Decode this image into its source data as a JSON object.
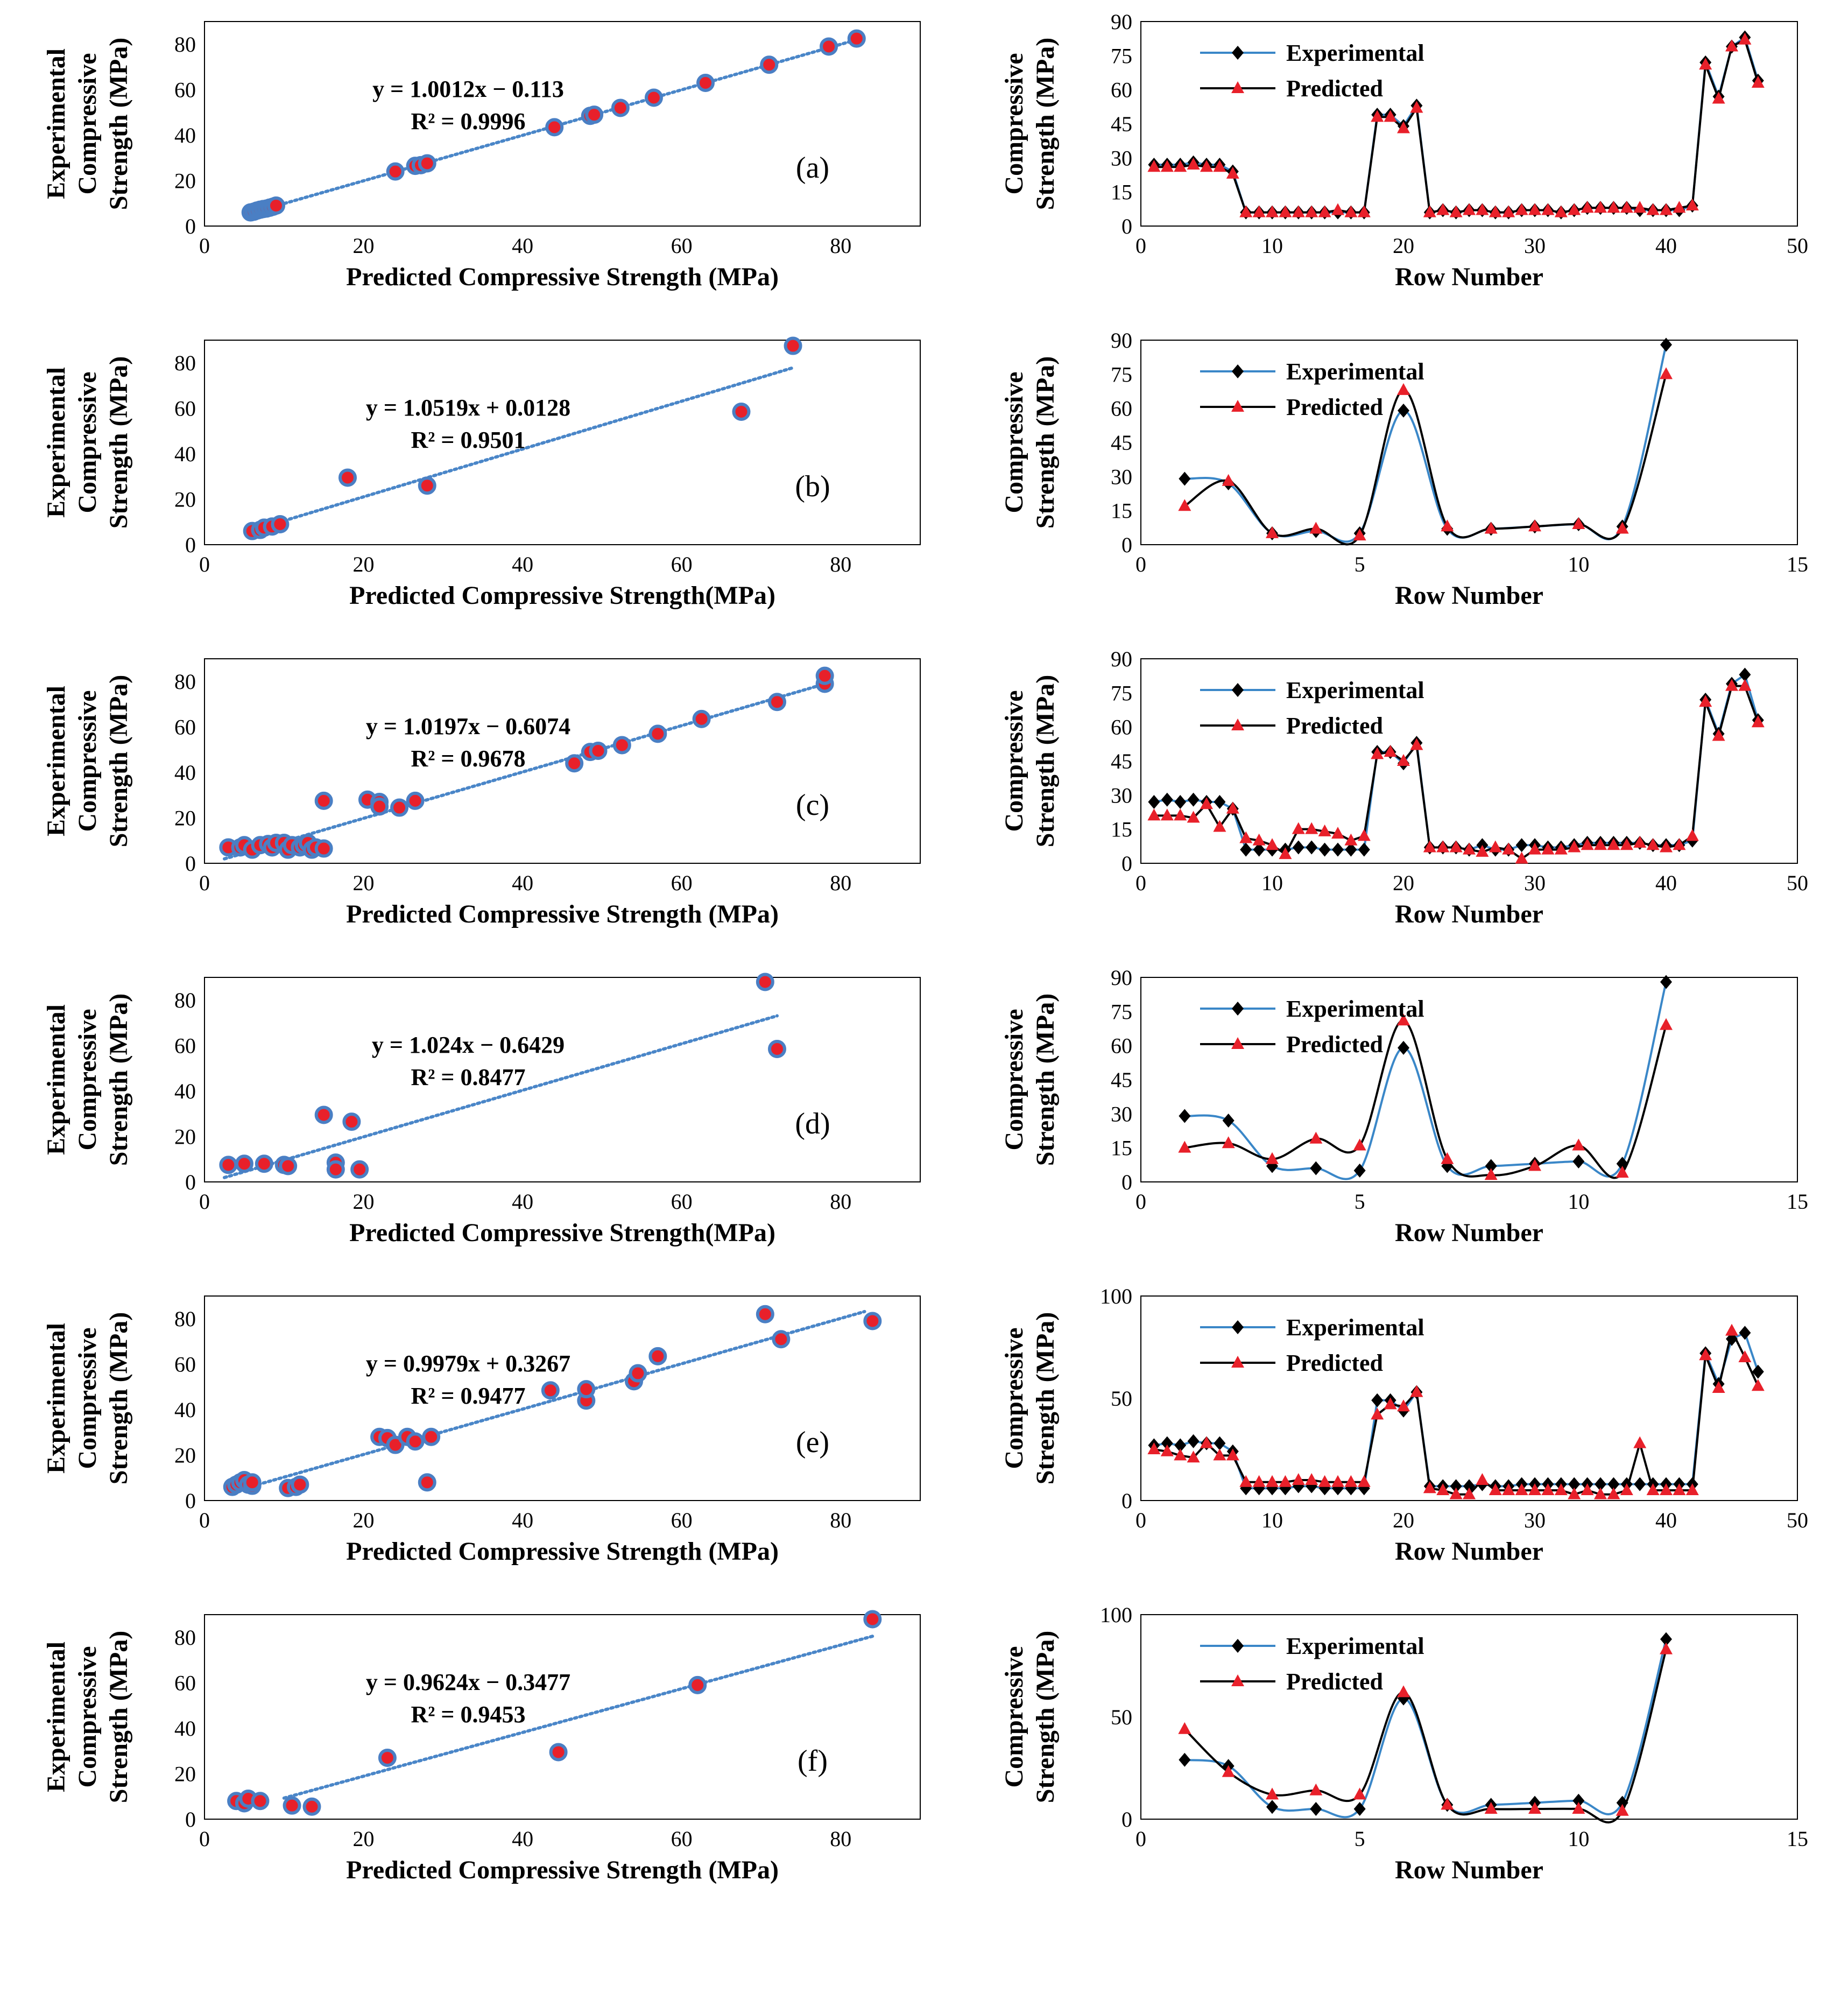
{
  "figure": {
    "colors": {
      "marker_fill": "#e8202a",
      "marker_edge": "#4a7fc4",
      "trendline": "#4a86c8",
      "experimental_line": "#3a87c8",
      "experimental_marker": "#000000",
      "predicted_line": "#000000",
      "predicted_marker": "#e8202a",
      "frame": "#000000"
    }
  },
  "chart_data": [
    {
      "id": "a",
      "type": "scatter",
      "panel_label": "(a)",
      "xlabel": "Predicted Compressive Strength (MPa)",
      "ylabel": [
        "Experimental",
        "Compressive",
        "Strength (MPa)"
      ],
      "xlim": [
        0,
        90
      ],
      "ylim": [
        0,
        90
      ],
      "xticks": [
        0,
        20,
        40,
        60,
        80
      ],
      "yticks": [
        0,
        20,
        40,
        60,
        80
      ],
      "trendline": {
        "equation": "y = 1.0012x − 0.113",
        "r2": "R² = 0.9996",
        "slope": 1.0012,
        "intercept": -0.113,
        "x_range": [
          5.5,
          82
        ]
      },
      "points": [
        [
          5.8,
          6
        ],
        [
          6.2,
          6.3
        ],
        [
          6.6,
          6.8
        ],
        [
          7,
          7.2
        ],
        [
          7.4,
          7.5
        ],
        [
          7.8,
          7.7
        ],
        [
          8.2,
          8.1
        ],
        [
          8.6,
          8.5
        ],
        [
          9,
          9
        ],
        [
          24,
          24
        ],
        [
          26.5,
          26.5
        ],
        [
          27.2,
          26.8
        ],
        [
          28,
          27.6
        ],
        [
          44,
          43.5
        ],
        [
          48.5,
          48.5
        ],
        [
          49,
          49
        ],
        [
          52.3,
          52
        ],
        [
          56.5,
          56.5
        ],
        [
          63,
          63
        ],
        [
          71,
          71
        ],
        [
          78.5,
          79
        ],
        [
          82,
          82.5
        ]
      ]
    },
    {
      "id": "a-row",
      "type": "line",
      "xlabel": "Row Number",
      "ylabel": [
        "Compressive",
        "Strength (MPa)"
      ],
      "xlim": [
        0,
        50
      ],
      "ylim": [
        0,
        90
      ],
      "xticks": [
        0,
        10,
        20,
        30,
        40,
        50
      ],
      "yticks": [
        0,
        15,
        30,
        45,
        60,
        75,
        90
      ],
      "legend": [
        "Experimental",
        "Predicted"
      ],
      "series": [
        {
          "name": "Experimental",
          "values": [
            27,
            27,
            27,
            28,
            27,
            27,
            24,
            6,
            6,
            6,
            6,
            6,
            6,
            6,
            6,
            6,
            6,
            49,
            49,
            44,
            53,
            6,
            7,
            6,
            7,
            7,
            6,
            6,
            7,
            7,
            7,
            6,
            7,
            8,
            8,
            8,
            8,
            7,
            7,
            7,
            7,
            9,
            72,
            57,
            79,
            83,
            64
          ]
        },
        {
          "name": "Predicted",
          "values": [
            26,
            26,
            26,
            27,
            26,
            26,
            23,
            6,
            6,
            6,
            6,
            6,
            6,
            6,
            7,
            6,
            6,
            48,
            48,
            43,
            52,
            6,
            7,
            6,
            7,
            7,
            6,
            6,
            7,
            7,
            7,
            6,
            7,
            8,
            8,
            8,
            8,
            8,
            7,
            7,
            8,
            9,
            71,
            56,
            79,
            82,
            63
          ]
        }
      ]
    },
    {
      "id": "b",
      "type": "scatter",
      "panel_label": "(b)",
      "xlabel": "Predicted Compressive Strength(MPa)",
      "ylabel": [
        "Experimental",
        "Compressive",
        "Strength (MPa)"
      ],
      "xlim": [
        0,
        90
      ],
      "ylim": [
        0,
        90
      ],
      "xticks": [
        0,
        20,
        40,
        60,
        80
      ],
      "yticks": [
        0,
        20,
        40,
        60,
        80
      ],
      "trendline": {
        "equation": "y = 1.0519x + 0.0128",
        "r2": "R² = 0.9501",
        "slope": 1.0519,
        "intercept": 0.0128,
        "x_range": [
          5.5,
          74
        ]
      },
      "points": [
        [
          6,
          6
        ],
        [
          7,
          6.5
        ],
        [
          7.5,
          7.5
        ],
        [
          8.5,
          8
        ],
        [
          9.5,
          9
        ],
        [
          18,
          29.5
        ],
        [
          28,
          26
        ],
        [
          67.5,
          58.5
        ],
        [
          74,
          87.5
        ]
      ]
    },
    {
      "id": "b-row",
      "type": "line",
      "xlabel": "Row Number",
      "ylabel": [
        "Compressive",
        "Strength (MPa)"
      ],
      "xlim": [
        0,
        15
      ],
      "ylim": [
        0,
        90
      ],
      "xticks": [
        0,
        5,
        10,
        15
      ],
      "yticks": [
        0,
        15,
        30,
        45,
        60,
        75,
        90
      ],
      "legend": [
        "Experimental",
        "Predicted"
      ],
      "series": [
        {
          "name": "Experimental",
          "values": [
            29,
            27,
            5,
            6,
            5,
            59,
            7,
            7,
            8,
            9,
            8,
            88
          ]
        },
        {
          "name": "Predicted",
          "values": [
            17,
            28,
            5,
            7,
            4,
            68,
            8,
            7,
            8,
            9,
            7,
            75
          ]
        }
      ]
    },
    {
      "id": "c",
      "type": "scatter",
      "panel_label": "(c)",
      "xlabel": "Predicted Compressive Strength (MPa)",
      "ylabel": [
        "Experimental",
        "Compressive",
        "Strength (MPa)"
      ],
      "xlim": [
        0,
        90
      ],
      "ylim": [
        0,
        90
      ],
      "xticks": [
        0,
        20,
        40,
        60,
        80
      ],
      "yticks": [
        0,
        20,
        40,
        60,
        80
      ],
      "trendline": {
        "equation": "y = 1.0197x − 0.6074",
        "r2": "R² = 0.9678",
        "slope": 1.0197,
        "intercept": -0.6074,
        "x_range": [
          2.5,
          78
        ]
      },
      "points": [
        [
          3,
          7
        ],
        [
          4.5,
          7
        ],
        [
          5,
          8
        ],
        [
          6,
          6
        ],
        [
          7,
          8
        ],
        [
          8,
          8.5
        ],
        [
          8.5,
          7
        ],
        [
          9,
          9
        ],
        [
          10,
          9
        ],
        [
          10.5,
          6
        ],
        [
          11,
          8
        ],
        [
          12,
          7
        ],
        [
          12.5,
          8
        ],
        [
          13,
          9
        ],
        [
          13.5,
          6
        ],
        [
          14,
          7
        ],
        [
          15,
          6.5
        ],
        [
          15,
          27.5
        ],
        [
          20.5,
          28
        ],
        [
          22,
          27
        ],
        [
          22,
          25
        ],
        [
          24.5,
          24.5
        ],
        [
          26.5,
          27.5
        ],
        [
          46.5,
          44
        ],
        [
          48.5,
          49
        ],
        [
          49.5,
          49.5
        ],
        [
          52.5,
          52
        ],
        [
          57,
          57
        ],
        [
          62.5,
          63.5
        ],
        [
          72,
          71
        ],
        [
          78,
          79
        ],
        [
          78,
          82.5
        ]
      ]
    },
    {
      "id": "c-row",
      "type": "line",
      "xlabel": "Row Number",
      "ylabel": [
        "Compressive",
        "Strength (MPa)"
      ],
      "xlim": [
        0,
        50
      ],
      "ylim": [
        0,
        90
      ],
      "xticks": [
        0,
        10,
        20,
        30,
        40,
        50
      ],
      "yticks": [
        0,
        15,
        30,
        45,
        60,
        75,
        90
      ],
      "legend": [
        "Experimental",
        "Predicted"
      ],
      "series": [
        {
          "name": "Experimental",
          "values": [
            27,
            28,
            27,
            28,
            27,
            27,
            24,
            6,
            6,
            6,
            6,
            7,
            7,
            6,
            6,
            6,
            6,
            49,
            49,
            44,
            53,
            7,
            7,
            7,
            6,
            8,
            6,
            6,
            8,
            8,
            7,
            7,
            8,
            9,
            9,
            9,
            9,
            9,
            8,
            8,
            8,
            10,
            72,
            57,
            79,
            83,
            63
          ]
        },
        {
          "name": "Predicted",
          "values": [
            21,
            21,
            21,
            20,
            26,
            16,
            24,
            11,
            10,
            8,
            4,
            15,
            15,
            14,
            13,
            10,
            12,
            48,
            49,
            45,
            52,
            7,
            7,
            7,
            6,
            5,
            7,
            6,
            2,
            6,
            6,
            6,
            7,
            8,
            8,
            8,
            8,
            9,
            8,
            7,
            8,
            12,
            71,
            56,
            78,
            78,
            62
          ]
        }
      ]
    },
    {
      "id": "d",
      "type": "scatter",
      "panel_label": "(d)",
      "xlabel": "Predicted Compressive Strength(MPa)",
      "ylabel": [
        "Experimental",
        "Compressive",
        "Strength (MPa)"
      ],
      "xlim": [
        0,
        90
      ],
      "ylim": [
        0,
        90
      ],
      "xticks": [
        0,
        20,
        40,
        60,
        80
      ],
      "yticks": [
        0,
        20,
        40,
        60,
        80
      ],
      "trendline": {
        "equation": "y = 1.024x − 0.6429",
        "r2": "R² = 0.8477",
        "slope": 1.024,
        "intercept": -0.6429,
        "x_range": [
          2.5,
          72
        ]
      },
      "points": [
        [
          3,
          7.5
        ],
        [
          5,
          8
        ],
        [
          7.5,
          8
        ],
        [
          10,
          7.5
        ],
        [
          10.5,
          7
        ],
        [
          15,
          29.5
        ],
        [
          16.5,
          8.5
        ],
        [
          16.5,
          5.5
        ],
        [
          18.5,
          26.5
        ],
        [
          19.5,
          5.5
        ],
        [
          70.5,
          88
        ],
        [
          72,
          58.5
        ]
      ]
    },
    {
      "id": "d-row",
      "type": "line",
      "xlabel": "Row Number",
      "ylabel": [
        "Compressive",
        "Strength (MPa)"
      ],
      "xlim": [
        0,
        15
      ],
      "ylim": [
        0,
        90
      ],
      "xticks": [
        0,
        5,
        10,
        15
      ],
      "yticks": [
        0,
        15,
        30,
        45,
        60,
        75,
        90
      ],
      "legend": [
        "Experimental",
        "Predicted"
      ],
      "series": [
        {
          "name": "Experimental",
          "values": [
            29,
            27,
            7,
            6,
            5,
            59,
            7,
            7,
            8,
            9,
            8,
            88
          ]
        },
        {
          "name": "Predicted",
          "values": [
            15,
            17,
            10,
            19,
            16,
            71,
            10,
            3,
            7,
            16,
            4,
            69
          ]
        }
      ]
    },
    {
      "id": "e",
      "type": "scatter",
      "panel_label": "(e)",
      "xlabel": "Predicted Compressive Strength (MPa)",
      "ylabel": [
        "Experimental",
        "Compressive",
        "Strength (MPa)"
      ],
      "xlim": [
        0,
        90
      ],
      "ylim": [
        0,
        90
      ],
      "xticks": [
        0,
        20,
        40,
        60,
        80
      ],
      "yticks": [
        0,
        20,
        40,
        60,
        80
      ],
      "trendline": {
        "equation": "y = 0.9979x + 0.3267",
        "r2": "R² = 0.9477",
        "slope": 0.9979,
        "intercept": 0.3267,
        "x_range": [
          3.5,
          83
        ]
      },
      "points": [
        [
          3.5,
          6
        ],
        [
          4,
          7
        ],
        [
          4.5,
          8
        ],
        [
          5,
          9
        ],
        [
          5.5,
          7
        ],
        [
          6,
          6.5
        ],
        [
          6,
          8
        ],
        [
          10.5,
          5.5
        ],
        [
          11.5,
          6
        ],
        [
          12,
          7
        ],
        [
          22,
          28
        ],
        [
          23,
          27.5
        ],
        [
          24,
          24.5
        ],
        [
          25.5,
          28
        ],
        [
          26.5,
          26
        ],
        [
          28,
          8
        ],
        [
          28.5,
          28
        ],
        [
          43.5,
          48.5
        ],
        [
          48,
          44
        ],
        [
          48,
          49
        ],
        [
          54,
          52.5
        ],
        [
          54.5,
          56
        ],
        [
          57,
          63.5
        ],
        [
          70.5,
          82
        ],
        [
          72.5,
          71
        ],
        [
          84,
          79
        ]
      ]
    },
    {
      "id": "e-row",
      "type": "line",
      "xlabel": "Row Number",
      "ylabel": [
        "Compressive",
        "Strength (MPa)"
      ],
      "xlim": [
        0,
        50
      ],
      "ylim": [
        0,
        100
      ],
      "xticks": [
        0,
        10,
        20,
        30,
        40,
        50
      ],
      "yticks": [
        0,
        50,
        100
      ],
      "legend": [
        "Experimental",
        "Predicted"
      ],
      "series": [
        {
          "name": "Experimental",
          "values": [
            27,
            28,
            27,
            29,
            28,
            28,
            24,
            6,
            6,
            6,
            6,
            7,
            7,
            6,
            6,
            6,
            6,
            49,
            49,
            44,
            53,
            7,
            7,
            7,
            7,
            8,
            7,
            7,
            8,
            8,
            8,
            8,
            8,
            8,
            8,
            8,
            8,
            8,
            8,
            8,
            8,
            8,
            72,
            57,
            79,
            82,
            63
          ]
        },
        {
          "name": "Predicted",
          "values": [
            25,
            24,
            22,
            21,
            28,
            22,
            22,
            9,
            9,
            9,
            9,
            10,
            10,
            9,
            9,
            9,
            9,
            42,
            47,
            46,
            53,
            6,
            5,
            3,
            3,
            10,
            5,
            5,
            5,
            5,
            5,
            5,
            3,
            5,
            3,
            3,
            5,
            28,
            5,
            5,
            5,
            5,
            71,
            55,
            83,
            70,
            56
          ]
        }
      ]
    },
    {
      "id": "f",
      "type": "scatter",
      "panel_label": "(f)",
      "xlabel": "Predicted Compressive Strength (MPa)",
      "ylabel": [
        "Experimental",
        "Compressive",
        "Strength (MPa)"
      ],
      "xlim": [
        0,
        90
      ],
      "ylim": [
        0,
        90
      ],
      "xticks": [
        0,
        20,
        40,
        60,
        80
      ],
      "yticks": [
        0,
        20,
        40,
        60,
        80
      ],
      "trendline": {
        "equation": "y = 0.9624x − 0.3477",
        "r2": "R² = 0.9453",
        "slope": 0.9624,
        "intercept": -0.3477,
        "x_range": [
          10,
          84
        ]
      },
      "points": [
        [
          4,
          8
        ],
        [
          5,
          7
        ],
        [
          5.5,
          9
        ],
        [
          7,
          8
        ],
        [
          11,
          6
        ],
        [
          13.5,
          5.5
        ],
        [
          23,
          27
        ],
        [
          44.5,
          29.5
        ],
        [
          62,
          59
        ],
        [
          84,
          88
        ]
      ]
    },
    {
      "id": "f-row",
      "type": "line",
      "xlabel": "Row Number",
      "ylabel": [
        "Compressive",
        "Strength (MPa)"
      ],
      "xlim": [
        0,
        15
      ],
      "ylim": [
        0,
        100
      ],
      "xticks": [
        0,
        5,
        10,
        15
      ],
      "yticks": [
        0,
        50,
        100
      ],
      "legend": [
        "Experimental",
        "Predicted"
      ],
      "series": [
        {
          "name": "Experimental",
          "values": [
            29,
            26,
            6,
            5,
            5,
            59,
            7,
            7,
            8,
            9,
            8,
            88
          ]
        },
        {
          "name": "Predicted",
          "values": [
            44,
            23,
            12,
            14,
            12,
            62,
            7,
            5,
            5,
            5,
            4,
            83
          ]
        }
      ]
    }
  ]
}
